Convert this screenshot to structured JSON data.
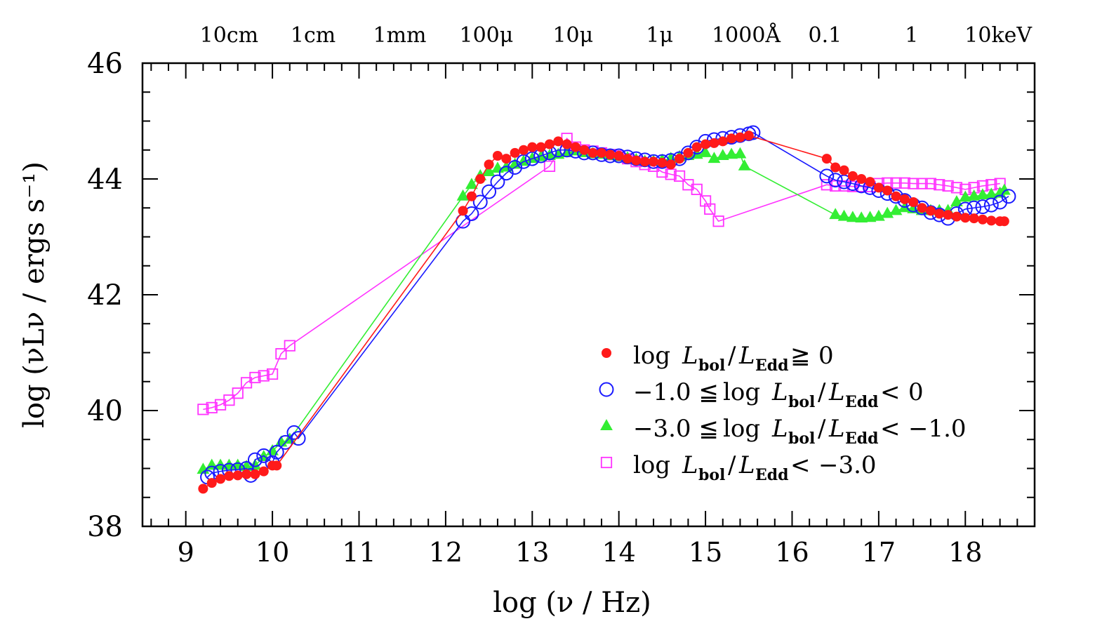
{
  "chart_data": {
    "type": "line",
    "xlabel": "log (ν / Hz)",
    "ylabel": "log (νLν / ergs s⁻¹)",
    "xlim": [
      8.5,
      18.8
    ],
    "ylim": [
      38,
      46
    ],
    "x_ticks": [
      "9",
      "10",
      "11",
      "12",
      "13",
      "14",
      "15",
      "16",
      "17",
      "18"
    ],
    "y_ticks": [
      "38",
      "40",
      "42",
      "44",
      "46"
    ],
    "top_axis_labels": [
      {
        "x": 9.5,
        "text": "10cm"
      },
      {
        "x": 10.47,
        "text": "1cm"
      },
      {
        "x": 11.47,
        "text": "1mm"
      },
      {
        "x": 12.47,
        "text": "100μ"
      },
      {
        "x": 13.47,
        "text": "10μ"
      },
      {
        "x": 14.47,
        "text": "1μ"
      },
      {
        "x": 15.47,
        "text": "1000Å"
      },
      {
        "x": 16.38,
        "text": "0.1"
      },
      {
        "x": 17.38,
        "text": "1"
      },
      {
        "x": 18.38,
        "text": "10keV"
      }
    ],
    "series": [
      {
        "name": "log Lbol/LEdd ≧ 0",
        "legend": {
          "prefix": "",
          "relation": "≧",
          "value": "0"
        },
        "color": "#ff1a1a",
        "marker": "filled-circle",
        "x": [
          9.2,
          9.3,
          9.4,
          9.5,
          9.6,
          9.7,
          9.8,
          9.9,
          10.0,
          10.05,
          12.2,
          12.3,
          12.4,
          12.5,
          12.6,
          12.7,
          12.8,
          12.9,
          13.0,
          13.1,
          13.2,
          13.3,
          13.4,
          13.5,
          13.6,
          13.7,
          13.8,
          13.9,
          14.0,
          14.1,
          14.2,
          14.3,
          14.4,
          14.5,
          14.6,
          14.7,
          14.8,
          14.9,
          15.0,
          15.1,
          15.2,
          15.3,
          15.4,
          15.5,
          16.4,
          16.5,
          16.6,
          16.7,
          16.8,
          16.9,
          17.0,
          17.1,
          17.2,
          17.3,
          17.4,
          17.5,
          17.6,
          17.7,
          17.8,
          17.9,
          18.0,
          18.1,
          18.2,
          18.3,
          18.4,
          18.45
        ],
        "y": [
          38.65,
          38.75,
          38.82,
          38.87,
          38.88,
          38.9,
          38.9,
          38.95,
          39.05,
          39.05,
          43.45,
          43.7,
          44.0,
          44.25,
          44.4,
          44.35,
          44.45,
          44.5,
          44.55,
          44.55,
          44.6,
          44.65,
          44.6,
          44.55,
          44.5,
          44.45,
          44.45,
          44.42,
          44.4,
          44.35,
          44.32,
          44.3,
          44.3,
          44.28,
          44.25,
          44.35,
          44.45,
          44.55,
          44.6,
          44.62,
          44.65,
          44.7,
          44.72,
          44.75,
          44.35,
          44.2,
          44.15,
          44.05,
          44.0,
          43.95,
          43.85,
          43.8,
          43.7,
          43.65,
          43.6,
          43.5,
          43.45,
          43.4,
          43.38,
          43.35,
          43.33,
          43.32,
          43.3,
          43.28,
          43.27,
          43.27
        ]
      },
      {
        "name": "−1.0 ≦ log Lbol/LEdd < 0",
        "legend": {
          "prefix": "−1.0 ≦",
          "relation": "<",
          "value": "0"
        },
        "color": "#1a1aff",
        "marker": "open-circle",
        "x": [
          9.25,
          9.3,
          9.4,
          9.5,
          9.6,
          9.7,
          9.75,
          9.8,
          9.9,
          10.0,
          10.05,
          10.15,
          10.25,
          10.3,
          12.2,
          12.3,
          12.4,
          12.5,
          12.6,
          12.7,
          12.8,
          12.9,
          13.0,
          13.1,
          13.2,
          13.3,
          13.4,
          13.5,
          13.6,
          13.7,
          13.8,
          13.9,
          14.0,
          14.1,
          14.2,
          14.3,
          14.4,
          14.5,
          14.6,
          14.7,
          14.8,
          14.9,
          15.0,
          15.1,
          15.2,
          15.3,
          15.4,
          15.5,
          15.55,
          16.4,
          16.5,
          16.6,
          16.7,
          16.8,
          16.9,
          17.0,
          17.1,
          17.2,
          17.3,
          17.4,
          17.5,
          17.6,
          17.7,
          17.8,
          17.9,
          18.0,
          18.1,
          18.2,
          18.3,
          18.4,
          18.5
        ],
        "y": [
          38.85,
          38.92,
          38.95,
          38.97,
          38.98,
          39.0,
          38.88,
          39.15,
          39.22,
          39.1,
          39.28,
          39.45,
          39.62,
          39.52,
          43.27,
          43.4,
          43.6,
          43.78,
          43.95,
          44.1,
          44.2,
          44.3,
          44.35,
          44.4,
          44.45,
          44.5,
          44.5,
          44.48,
          44.45,
          44.45,
          44.42,
          44.4,
          44.4,
          44.38,
          44.35,
          44.33,
          44.3,
          44.3,
          44.32,
          44.35,
          44.45,
          44.55,
          44.65,
          44.68,
          44.7,
          44.72,
          44.75,
          44.78,
          44.8,
          44.05,
          43.98,
          43.95,
          43.92,
          43.88,
          43.85,
          43.8,
          43.75,
          43.7,
          43.63,
          43.55,
          43.5,
          43.42,
          43.38,
          43.32,
          43.4,
          43.48,
          43.5,
          43.52,
          43.55,
          43.6,
          43.7
        ]
      },
      {
        "name": "−3.0 ≦ log Lbol/LEdd < −1.0",
        "legend": {
          "prefix": "−3.0 ≦",
          "relation": "<",
          "value": "−1.0"
        },
        "color": "#33ee33",
        "marker": "filled-triangle",
        "x": [
          9.2,
          9.3,
          9.4,
          9.5,
          9.6,
          9.7,
          9.8,
          9.9,
          10.0,
          10.1,
          10.2,
          12.2,
          12.3,
          12.4,
          12.5,
          12.6,
          12.7,
          12.8,
          12.9,
          13.0,
          13.1,
          13.2,
          13.3,
          13.4,
          13.5,
          13.6,
          13.7,
          13.8,
          13.9,
          14.0,
          14.1,
          14.2,
          14.3,
          14.4,
          14.5,
          14.6,
          14.7,
          14.8,
          14.9,
          15.0,
          15.1,
          15.2,
          15.3,
          15.4,
          15.45,
          16.5,
          16.6,
          16.7,
          16.8,
          16.9,
          17.0,
          17.1,
          17.2,
          17.3,
          17.4,
          17.5,
          17.6,
          17.7,
          17.8,
          17.9,
          18.0,
          18.1,
          18.2,
          18.3,
          18.4,
          18.45
        ],
        "y": [
          38.98,
          39.05,
          39.05,
          39.05,
          39.05,
          39.03,
          39.05,
          39.2,
          39.3,
          39.45,
          39.5,
          43.7,
          43.9,
          44.05,
          44.12,
          44.18,
          44.2,
          44.25,
          44.3,
          44.35,
          44.38,
          44.4,
          44.42,
          44.45,
          44.48,
          44.45,
          44.43,
          44.42,
          44.4,
          44.38,
          44.36,
          44.33,
          44.3,
          44.3,
          44.32,
          44.35,
          44.38,
          44.4,
          44.42,
          44.45,
          44.35,
          44.4,
          44.42,
          44.43,
          44.22,
          43.38,
          43.35,
          43.33,
          43.32,
          43.33,
          43.35,
          43.4,
          43.45,
          43.5,
          43.48,
          43.45,
          43.45,
          43.45,
          43.45,
          43.6,
          43.68,
          43.7,
          43.72,
          43.73,
          43.75,
          43.8
        ]
      },
      {
        "name": "log Lbol/LEdd < −3.0",
        "legend": {
          "prefix": "",
          "relation": "<",
          "value": "−3.0"
        },
        "color": "#ff33ff",
        "marker": "open-square",
        "x": [
          9.2,
          9.3,
          9.4,
          9.5,
          9.6,
          9.7,
          9.8,
          9.9,
          10.0,
          10.1,
          10.2,
          13.2,
          13.4,
          13.5,
          13.6,
          13.7,
          13.8,
          13.9,
          14.0,
          14.1,
          14.2,
          14.3,
          14.4,
          14.5,
          14.6,
          14.7,
          14.8,
          14.9,
          15.0,
          15.05,
          15.15,
          16.4,
          16.5,
          16.6,
          16.7,
          16.8,
          16.9,
          17.0,
          17.1,
          17.2,
          17.3,
          17.4,
          17.5,
          17.6,
          17.7,
          17.8,
          17.9,
          18.0,
          18.1,
          18.2,
          18.3,
          18.4
        ],
        "y": [
          40.02,
          40.05,
          40.1,
          40.18,
          40.3,
          40.48,
          40.57,
          40.6,
          40.63,
          40.98,
          41.12,
          44.22,
          44.7,
          44.55,
          44.5,
          44.48,
          44.45,
          44.42,
          44.4,
          44.35,
          44.3,
          44.25,
          44.22,
          44.12,
          44.08,
          44.05,
          43.9,
          43.82,
          43.62,
          43.48,
          43.27,
          43.9,
          43.88,
          43.88,
          43.87,
          43.87,
          43.87,
          43.92,
          43.93,
          43.93,
          43.93,
          43.92,
          43.92,
          43.92,
          43.9,
          43.88,
          43.85,
          43.82,
          43.85,
          43.88,
          43.9,
          43.92
        ]
      }
    ]
  }
}
